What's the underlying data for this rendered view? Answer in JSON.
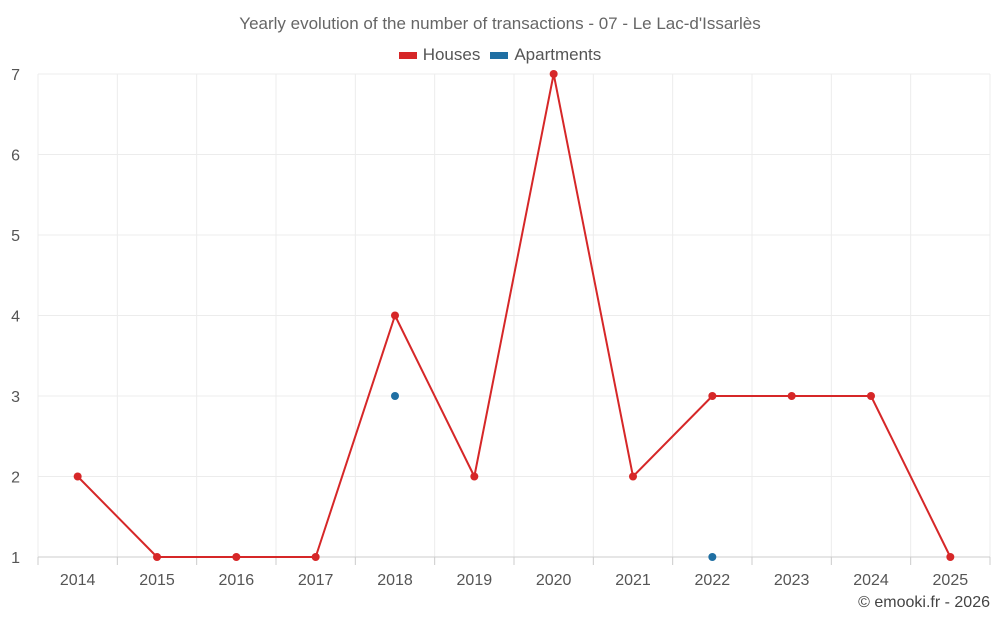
{
  "chart_data": {
    "type": "line",
    "title": "Yearly evolution of the number of transactions - 07 - Le Lac-d'Issarlès",
    "xlabel": "",
    "ylabel": "",
    "categories": [
      "2014",
      "2015",
      "2016",
      "2017",
      "2018",
      "2019",
      "2020",
      "2021",
      "2022",
      "2023",
      "2024",
      "2025"
    ],
    "ylim": [
      1,
      7
    ],
    "yticks": [
      "1",
      "2",
      "3",
      "4",
      "5",
      "6",
      "7"
    ],
    "grid": true,
    "legend_position": "top-center",
    "series": [
      {
        "name": "Houses",
        "color": "#d62728",
        "values": [
          2,
          1,
          1,
          1,
          4,
          2,
          7,
          2,
          3,
          3,
          3,
          1
        ]
      },
      {
        "name": "Apartments",
        "color": "#1f6fa3",
        "values": [
          null,
          null,
          null,
          null,
          3,
          null,
          null,
          null,
          1,
          null,
          null,
          null
        ]
      }
    ]
  },
  "footer": {
    "credit": "© emooki.fr - 2026"
  }
}
